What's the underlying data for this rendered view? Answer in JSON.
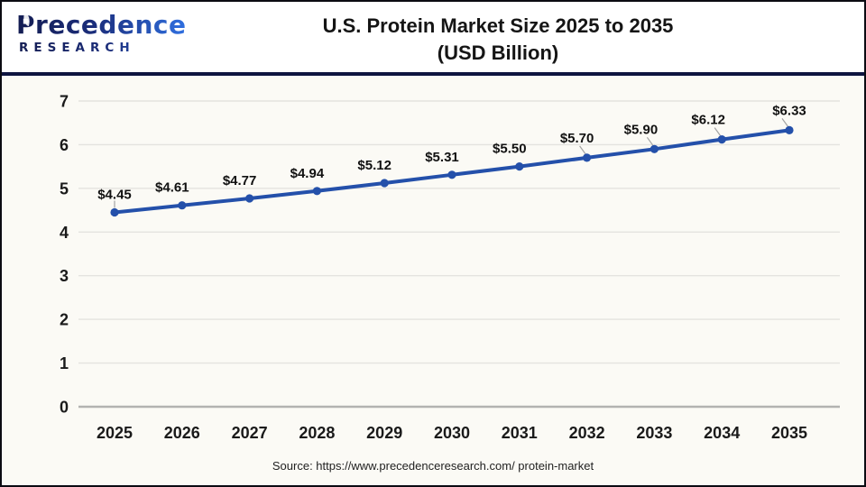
{
  "header": {
    "logo_word": "Precedence",
    "logo_sub": "RESEARCH",
    "title_line1": "U.S. Protein Market Size 2025 to 2035",
    "title_line2": "(USD Billion)"
  },
  "footer": {
    "source": "Source: https://www.precedenceresearch.com/ protein-market"
  },
  "colors": {
    "series": "#2450aa",
    "grid": "#e4e3df",
    "zero_line": "#b3b3b0",
    "leader": "#a3a3a3",
    "divider": "#0e1440",
    "chart_bg": "#fbfaf5"
  },
  "chart_data": {
    "type": "line",
    "title": "U.S. Protein Market Size 2025 to 2035 (USD Billion)",
    "categories": [
      "2025",
      "2026",
      "2027",
      "2028",
      "2029",
      "2030",
      "2031",
      "2032",
      "2033",
      "2034",
      "2035"
    ],
    "values": [
      4.45,
      4.61,
      4.77,
      4.94,
      5.12,
      5.31,
      5.5,
      5.7,
      5.9,
      6.12,
      6.33
    ],
    "labels": [
      "$4.45",
      "$4.61",
      "$4.77",
      "$4.94",
      "$5.12",
      "$5.31",
      "$5.50",
      "$5.70",
      "$5.90",
      "$6.12",
      "$6.33"
    ],
    "xlabel": "",
    "ylabel": "",
    "ylim": [
      0,
      7
    ],
    "ytick_step": 1,
    "yticks": [
      "0",
      "1",
      "2",
      "3",
      "4",
      "5",
      "6",
      "7"
    ],
    "grid": true,
    "legend": "none",
    "marker": "circle"
  }
}
